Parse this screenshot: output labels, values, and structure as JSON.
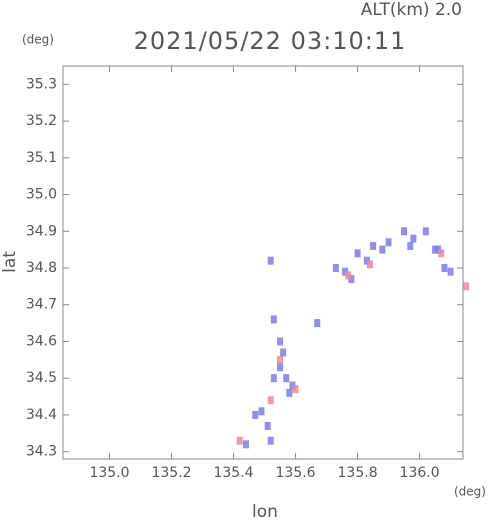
{
  "chart_data": {
    "type": "scatter",
    "title": "2021/05/22 03:10:11",
    "subtitle": "ALT(km)  2.0",
    "x_label": "lon",
    "y_label": "lat",
    "x_unit": "(deg)",
    "y_unit": "(deg)",
    "xlim": [
      134.85,
      136.14
    ],
    "ylim": [
      34.28,
      35.35
    ],
    "xticks": [
      {
        "value": 135.0,
        "label": "135.0"
      },
      {
        "value": 135.2,
        "label": "135.2"
      },
      {
        "value": 135.4,
        "label": "135.4"
      },
      {
        "value": 135.6,
        "label": "135.6"
      },
      {
        "value": 135.8,
        "label": "135.8"
      },
      {
        "value": 136.0,
        "label": "136.0"
      }
    ],
    "yticks": [
      {
        "value": 34.3,
        "label": "34.3"
      },
      {
        "value": 34.4,
        "label": "34.4"
      },
      {
        "value": 34.5,
        "label": "34.5"
      },
      {
        "value": 34.6,
        "label": "34.6"
      },
      {
        "value": 34.7,
        "label": "34.7"
      },
      {
        "value": 34.8,
        "label": "34.8"
      },
      {
        "value": 34.9,
        "label": "34.9"
      },
      {
        "value": 35.0,
        "label": "35.0"
      },
      {
        "value": 35.1,
        "label": "35.1"
      },
      {
        "value": 35.2,
        "label": "35.2"
      },
      {
        "value": 35.3,
        "label": "35.3"
      }
    ],
    "series": [
      {
        "color": "#7b7bf0",
        "x": [
          135.95,
          135.98,
          136.02,
          135.9,
          135.85,
          135.8,
          136.05,
          135.97,
          135.88,
          135.83,
          135.76,
          135.78,
          136.08,
          136.1,
          136.06,
          135.73,
          135.52,
          135.55,
          135.56,
          135.55,
          135.57,
          135.59,
          135.53,
          135.58,
          135.47,
          135.49,
          135.51,
          135.52,
          135.44,
          135.67,
          135.53
        ],
        "values": [
          34.9,
          34.88,
          34.9,
          34.87,
          34.86,
          34.84,
          34.85,
          34.86,
          34.85,
          34.82,
          34.79,
          34.77,
          34.8,
          34.79,
          34.85,
          34.8,
          34.82,
          34.6,
          34.57,
          34.53,
          34.5,
          34.48,
          34.5,
          34.46,
          34.4,
          34.41,
          34.37,
          34.33,
          34.32,
          34.65,
          34.66
        ]
      },
      {
        "color": "#e88a9a",
        "x": [
          135.42,
          135.6,
          135.55,
          135.77,
          136.07,
          136.15,
          135.52,
          135.84
        ],
        "values": [
          34.33,
          34.47,
          34.55,
          34.78,
          34.84,
          34.75,
          34.44,
          34.81
        ]
      }
    ]
  }
}
